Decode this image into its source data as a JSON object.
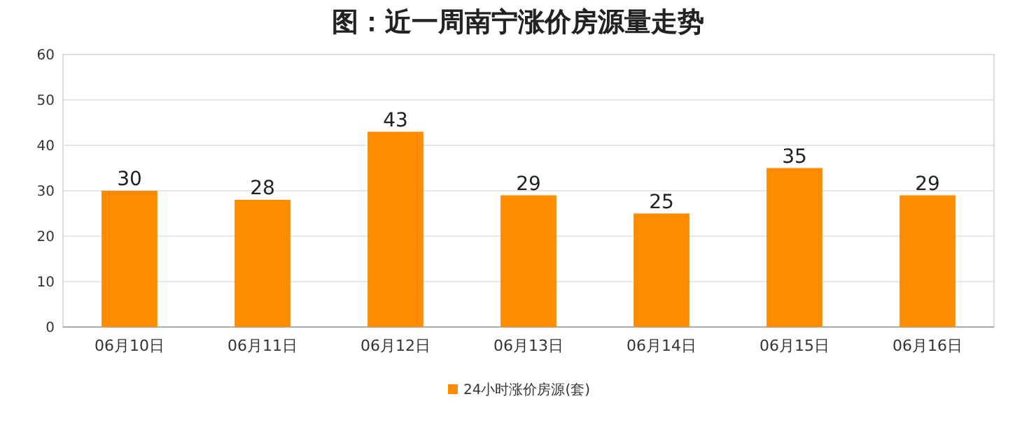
{
  "chart_data": {
    "type": "bar",
    "title": "图：近一周南宁涨价房源量走势",
    "categories": [
      "06月10日",
      "06月11日",
      "06月12日",
      "06月13日",
      "06月14日",
      "06月15日",
      "06月16日"
    ],
    "series": [
      {
        "name": "24小时涨价房源(套)",
        "color": "#ff8c00",
        "values": [
          30,
          28,
          43,
          29,
          25,
          35,
          29
        ]
      }
    ],
    "ylim": [
      0,
      60
    ],
    "yticks": [
      0,
      10,
      20,
      30,
      40,
      50,
      60
    ],
    "grid": "y",
    "legend": "bottom",
    "data_labels": true
  }
}
